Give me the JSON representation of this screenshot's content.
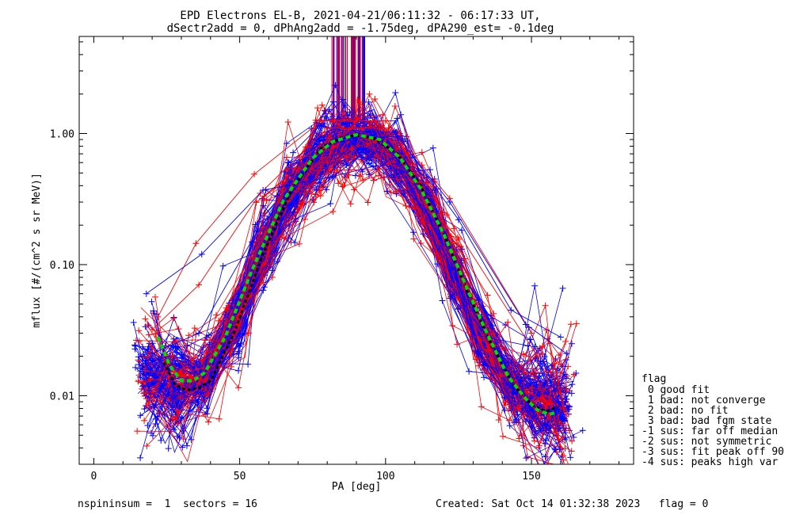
{
  "header": {
    "title_line1": "EPD Electrons EL-B, 2021-04-21/06:11:32 - 06:17:33 UT,",
    "title_line2": "dSectr2add = 0, dPhAng2add = -1.75deg, dPA290_est=  -0.1deg"
  },
  "footer": {
    "left": "nspininsum =  1  sectors = 16",
    "right": "Created: Sat Oct 14 01:32:38 2023   flag = 0"
  },
  "legend": {
    "title": "flag",
    "items": [
      " 0 good fit",
      " 1 bad: not converge",
      " 2 bad: no fit",
      " 3 bad: bad fgm state",
      "-1 sus: far off median",
      "-2 sus: not symmetric",
      "-3 sus: fit peak off 90",
      "-4 sus: peaks high var"
    ]
  },
  "chart_data": {
    "type": "line",
    "xlabel": "PA [deg]",
    "ylabel": "mflux [#/(cm^2 s sr MeV)]",
    "xlim": [
      -5,
      185
    ],
    "ylim": [
      0.003,
      5.5
    ],
    "yscale": "log",
    "xticks": [
      0,
      50,
      100,
      150
    ],
    "xtick_labels": [
      "0",
      "50",
      "100",
      "150"
    ],
    "yticks": [
      0.01,
      0.1,
      1.0
    ],
    "ytick_labels": [
      "0.01",
      "0.10",
      "1.00"
    ],
    "colors": {
      "sample_blue": "#0000ff",
      "sample_red": "#ff0000",
      "fit_green": "#00dd00",
      "fit_black": "#000000"
    },
    "median_profile": {
      "pa": [
        18,
        22,
        26,
        30,
        34,
        38,
        45,
        55,
        65,
        75,
        81,
        90,
        100,
        108,
        115,
        121,
        128,
        135,
        142,
        150,
        157,
        162
      ],
      "flux": [
        0.014,
        0.0125,
        0.012,
        0.012,
        0.0125,
        0.014,
        0.024,
        0.09,
        0.28,
        0.62,
        0.82,
        0.97,
        0.85,
        0.5,
        0.25,
        0.12,
        0.05,
        0.023,
        0.013,
        0.0085,
        0.0082,
        0.0085
      ]
    },
    "green_fit": {
      "pa": [
        22,
        26,
        30,
        34,
        38,
        45,
        55,
        65,
        75,
        82,
        90,
        98,
        105,
        112,
        120,
        128,
        135,
        142,
        148,
        152,
        156,
        159
      ],
      "flux": [
        0.028,
        0.017,
        0.013,
        0.013,
        0.015,
        0.028,
        0.1,
        0.31,
        0.65,
        0.87,
        0.98,
        0.9,
        0.65,
        0.38,
        0.17,
        0.065,
        0.029,
        0.014,
        0.0095,
        0.0078,
        0.0072,
        0.0075
      ]
    },
    "black_fit": {
      "pa": [
        24,
        28,
        32,
        36,
        40,
        48,
        58,
        68,
        78,
        85,
        90,
        96,
        104,
        112,
        120,
        128,
        136,
        144,
        150,
        155,
        159
      ],
      "flux": [
        0.018,
        0.012,
        0.011,
        0.0115,
        0.013,
        0.03,
        0.12,
        0.38,
        0.78,
        0.93,
        0.97,
        0.92,
        0.7,
        0.4,
        0.17,
        0.062,
        0.025,
        0.012,
        0.0085,
        0.0076,
        0.0082
      ]
    },
    "outliers": {
      "red": [
        {
          "pa": [
            22,
            35,
            55,
            78,
            100,
            122,
            150
          ],
          "flux": [
            0.04,
            0.145,
            0.49,
            1.25,
            1.25,
            0.32,
            0.03
          ]
        },
        {
          "pa": [
            20,
            36,
            57,
            80,
            101,
            121,
            152
          ],
          "flux": [
            0.032,
            0.07,
            0.35,
            1.1,
            1.1,
            0.24,
            0.02
          ]
        }
      ],
      "blue": [
        {
          "pa": [
            18,
            37,
            58,
            82,
            103,
            125,
            143,
            160
          ],
          "flux": [
            0.06,
            0.12,
            0.37,
            0.47,
            1.05,
            0.22,
            0.045,
            0.028
          ]
        },
        {
          "pa": [
            20,
            36,
            56,
            82,
            104,
            122,
            148,
            162
          ],
          "flux": [
            0.021,
            0.03,
            0.18,
            0.9,
            0.95,
            0.3,
            0.035,
            0.021
          ]
        }
      ]
    },
    "spikes": {
      "pa_min": 81,
      "pa_max": 93,
      "flux_bottom": 1.1
    },
    "legend_placement": "outside-right-bottom"
  }
}
